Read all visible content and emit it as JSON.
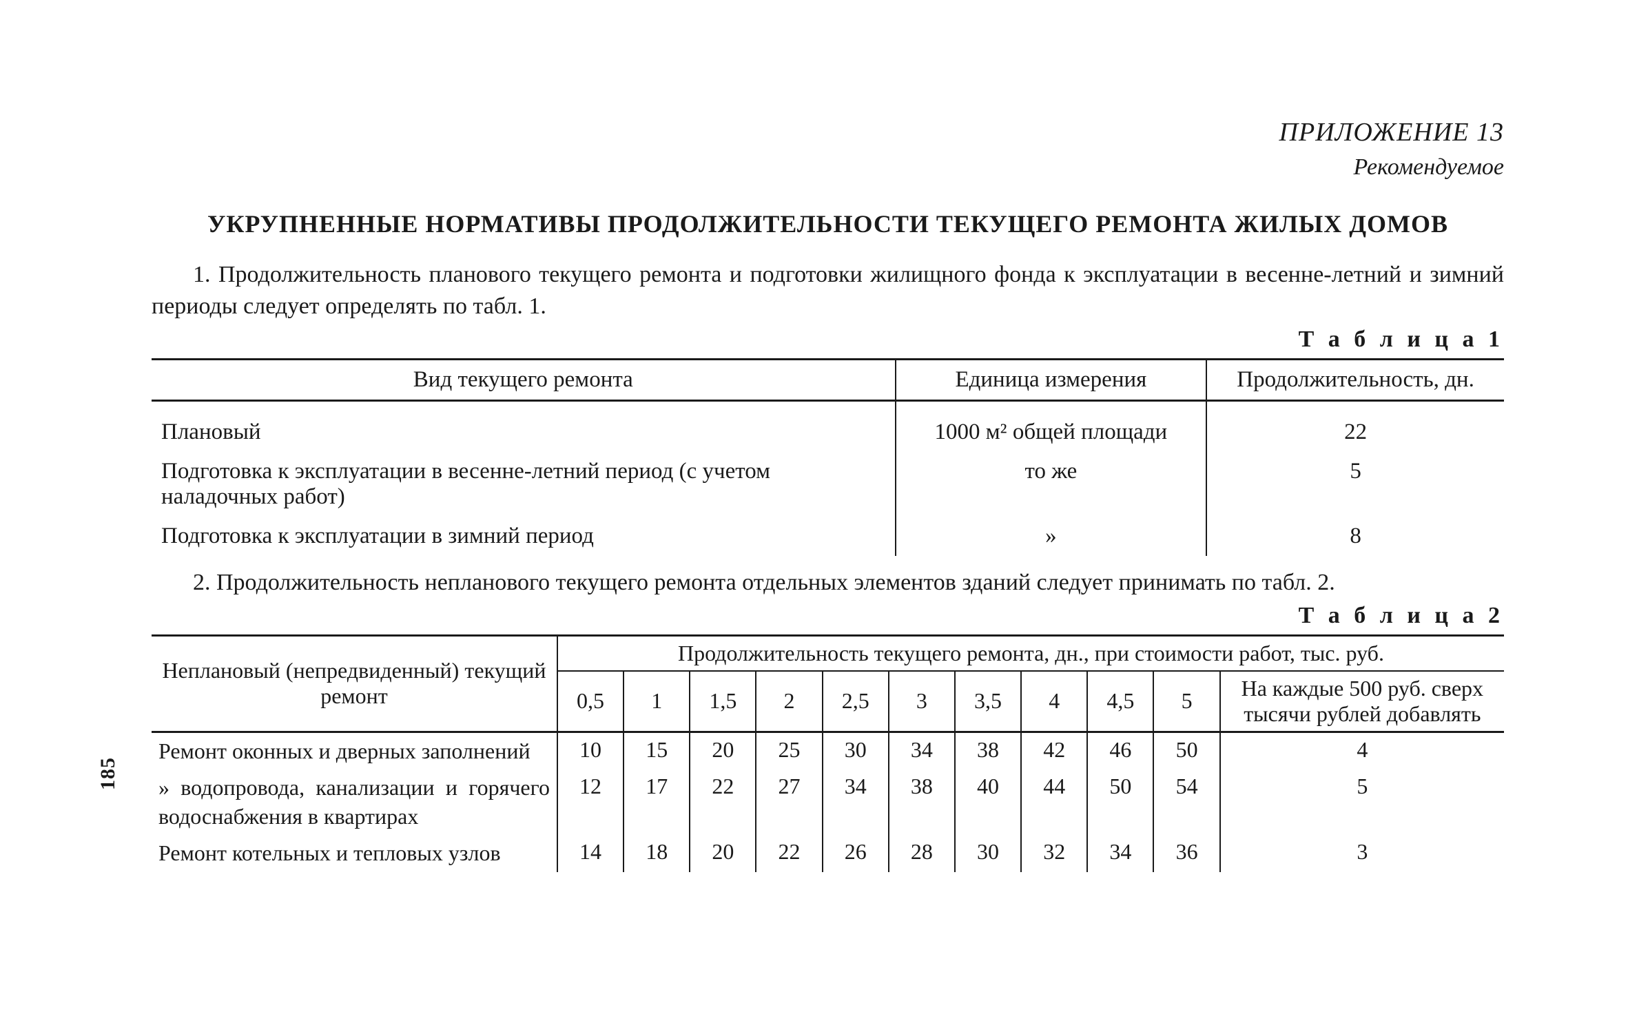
{
  "appendix": "ПРИЛОЖЕНИЕ 13",
  "recommended": "Рекомендуемое",
  "title": "УКРУПНЕННЫЕ НОРМАТИВЫ ПРОДОЛЖИТЕЛЬНОСТИ ТЕКУЩЕГО РЕМОНТА ЖИЛЫХ ДОМОВ",
  "para1": "1. Продолжительность планового текущего ремонта и подготовки жилищного фонда к эксплуатации в весенне-летний и зимний периоды следует определять по табл. 1.",
  "para2": "2. Продолжительность непланового текущего ремонта отдельных элементов зданий следует принимать по табл. 2.",
  "page_number": "185",
  "table1": {
    "label": "Т а б л и ц а  1",
    "head": {
      "c1": "Вид текущего ремонта",
      "c2": "Единица измерения",
      "c3": "Продолжительность, дн."
    },
    "rows": [
      {
        "c1": "Плановый",
        "c2": "1000 м² общей площади",
        "c3": "22"
      },
      {
        "c1": "Подготовка к эксплуатации в весенне-летний период (с учетом наладочных работ)",
        "c2": "то же",
        "c3": "5"
      },
      {
        "c1": "Подготовка к эксплуатации в зимний период",
        "c2": "»",
        "c3": "8"
      }
    ],
    "col_widths": [
      "55%",
      "23%",
      "22%"
    ]
  },
  "table2": {
    "label": "Т а б л и ц а  2",
    "head_left": "Неплановый (непредвиденный) текущий ремонт",
    "head_top": "Продолжительность текущего ремонта, дн., при стоимости работ, тыс. руб.",
    "cost_cols": [
      "0,5",
      "1",
      "1,5",
      "2",
      "2,5",
      "3",
      "3,5",
      "4",
      "4,5",
      "5"
    ],
    "extra_col": "На каждые 500 руб. сверх тысячи рублей добавлять",
    "rows": [
      {
        "desc": "Ремонт оконных и дверных заполнений",
        "vals": [
          "10",
          "15",
          "20",
          "25",
          "30",
          "34",
          "38",
          "42",
          "46",
          "50"
        ],
        "extra": "4"
      },
      {
        "desc": "   »   водопровода, канализации и горячего водоснабжения в квартирах",
        "vals": [
          "12",
          "17",
          "22",
          "27",
          "34",
          "38",
          "40",
          "44",
          "50",
          "54"
        ],
        "extra": "5"
      },
      {
        "desc": "Ремонт котельных и тепловых узлов",
        "vals": [
          "14",
          "18",
          "20",
          "22",
          "26",
          "28",
          "30",
          "32",
          "34",
          "36"
        ],
        "extra": "3"
      }
    ],
    "col_widths": {
      "desc": "30%",
      "val": "4.9%",
      "extra": "21%"
    }
  },
  "colors": {
    "text": "#1a1a1a",
    "bg": "#ffffff",
    "rule": "#1a1a1a"
  }
}
